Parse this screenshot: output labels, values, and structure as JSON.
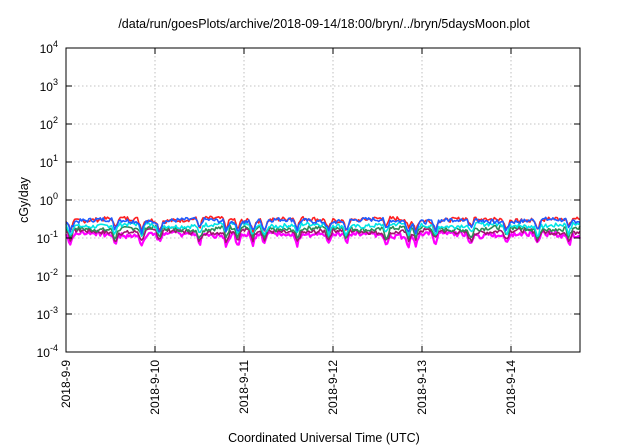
{
  "chart_data": {
    "type": "line",
    "title": "/data/run/goesPlots/archive/2018-09-14/18:00/bryn/../bryn/5daysMoon.plot",
    "xlabel": "Coordinated Universal Time (UTC)",
    "ylabel": "cGy/day",
    "yscale": "log",
    "ylim": [
      0.0001,
      10000
    ],
    "xlim": [
      "2018-09-09",
      "2018-09-14 18:00"
    ],
    "grid": true,
    "x_ticks": [
      "2018-9-9",
      "2018-9-10",
      "2018-9-11",
      "2018-9-12",
      "2018-9-13",
      "2018-9-14"
    ],
    "y_ticks": [
      {
        "base": "10",
        "exp": "4"
      },
      {
        "base": "10",
        "exp": "3"
      },
      {
        "base": "10",
        "exp": "2"
      },
      {
        "base": "10",
        "exp": "1"
      },
      {
        "base": "10",
        "exp": "0"
      },
      {
        "base": "10",
        "exp": "-1"
      },
      {
        "base": "10",
        "exp": "-2"
      },
      {
        "base": "10",
        "exp": "-3"
      },
      {
        "base": "10",
        "exp": "-4"
      }
    ],
    "series": [
      {
        "color": "#ff00ff",
        "base": 0.13,
        "approx": "~0.12–0.14 cGy/day with dips to ~0.06"
      },
      {
        "color": "#a0146e",
        "base": 0.15,
        "approx": "~0.15 cGy/day"
      },
      {
        "color": "#2e8b57",
        "base": 0.18,
        "approx": "~0.18 cGy/day"
      },
      {
        "color": "#00e5e5",
        "base": 0.22,
        "approx": "~0.22 cGy/day"
      },
      {
        "color": "#ff2020",
        "base": 0.31,
        "approx": "~0.30–0.35 cGy/day"
      },
      {
        "color": "#1e5bff",
        "base": 0.29,
        "approx": "~0.28–0.33 cGy/day"
      }
    ],
    "dips_days": [
      0.05,
      0.55,
      0.85,
      1.05,
      1.5,
      1.8,
      1.93,
      2.1,
      2.23,
      2.6,
      2.95,
      3.15,
      3.6,
      3.85,
      3.93,
      4.15,
      4.55,
      4.95,
      5.3,
      5.65
    ]
  }
}
